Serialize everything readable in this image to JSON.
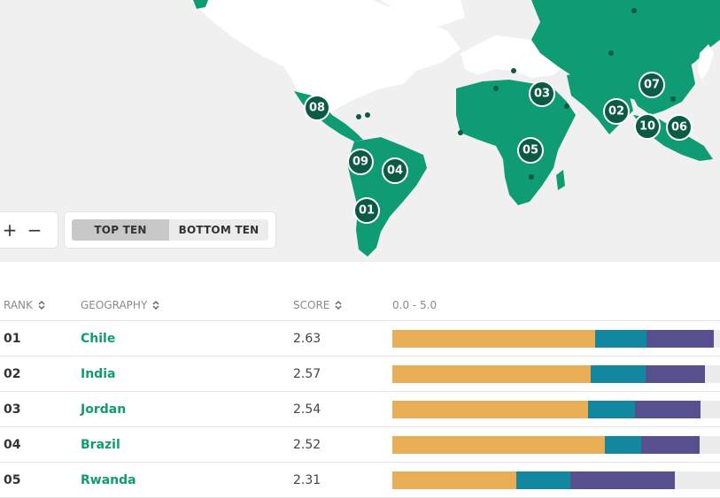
{
  "colors": {
    "ocean": "#f0f0f0",
    "land": "#ffffff",
    "highlight_land": "#0f9b73",
    "marker": "#0b5a44",
    "link": "#0e9e6e",
    "seg1": "#e8ad55",
    "seg2": "#11889f",
    "seg3": "#56508e",
    "bar_bg": "#ececec"
  },
  "map": {
    "markers": [
      {
        "label": "01"
      },
      {
        "label": "02"
      },
      {
        "label": "03"
      },
      {
        "label": "04"
      },
      {
        "label": "05"
      },
      {
        "label": "06"
      },
      {
        "label": "07"
      },
      {
        "label": "08"
      },
      {
        "label": "09"
      },
      {
        "label": "10"
      }
    ]
  },
  "controls": {
    "zoom_in": "+",
    "zoom_out": "−",
    "top_ten": "TOP TEN",
    "bottom_ten": "BOTTOM TEN",
    "selected": "TOP TEN"
  },
  "table": {
    "headers": {
      "rank": "RANK",
      "geography": "GEOGRAPHY",
      "score": "SCORE",
      "range": "0.0 - 5.0"
    },
    "rows": [
      {
        "rank": "01",
        "geography": "Chile",
        "score": "2.63",
        "segments": [
          2.63,
          0.67,
          0.87
        ]
      },
      {
        "rank": "02",
        "geography": "India",
        "score": "2.57",
        "segments": [
          2.57,
          0.71,
          0.78
        ]
      },
      {
        "rank": "03",
        "geography": "Jordan",
        "score": "2.54",
        "segments": [
          2.54,
          0.61,
          0.85
        ]
      },
      {
        "rank": "04",
        "geography": "Brazil",
        "score": "2.52",
        "segments": [
          2.76,
          0.47,
          0.76
        ]
      },
      {
        "rank": "05",
        "geography": "Rwanda",
        "score": "2.31",
        "segments": [
          1.61,
          0.7,
          1.35
        ]
      }
    ],
    "scale_max": 4.25
  }
}
